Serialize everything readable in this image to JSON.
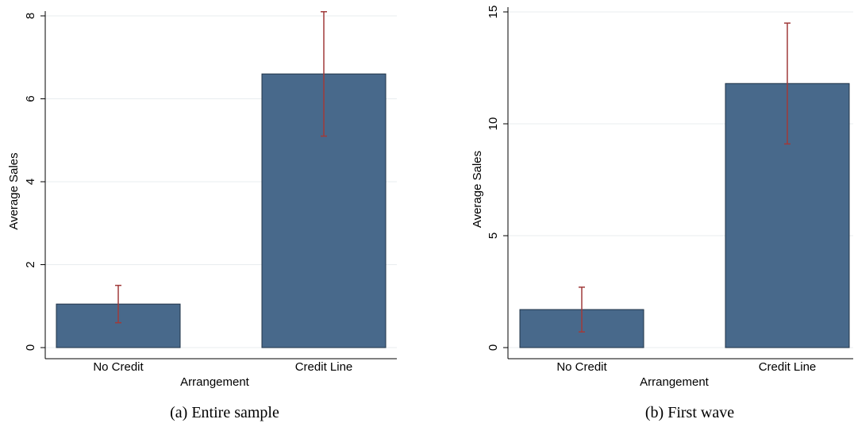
{
  "chart_data": [
    {
      "type": "bar",
      "caption": "(a)  Entire sample",
      "xlabel": "Arrangement",
      "ylabel": "Average Sales",
      "categories": [
        "No Credit",
        "Credit Line"
      ],
      "values": [
        1.05,
        6.6
      ],
      "error_low": [
        0.6,
        5.1
      ],
      "error_high": [
        1.5,
        8.1
      ],
      "ylim": [
        0,
        8
      ],
      "yticks": [
        "0",
        "2",
        "4",
        "6",
        "8"
      ],
      "grid": true,
      "bar_color": "#48698b",
      "error_color": "#a03a3a"
    },
    {
      "type": "bar",
      "caption": "(b)  First wave",
      "xlabel": "Arrangement",
      "ylabel": "Average Sales",
      "categories": [
        "No Credit",
        "Credit Line"
      ],
      "values": [
        1.7,
        11.8
      ],
      "error_low": [
        0.7,
        9.1
      ],
      "error_high": [
        2.7,
        14.5
      ],
      "ylim": [
        0,
        15
      ],
      "yticks": [
        "0",
        "5",
        "10",
        "15"
      ],
      "grid": true,
      "bar_color": "#48698b",
      "error_color": "#a03a3a"
    }
  ]
}
